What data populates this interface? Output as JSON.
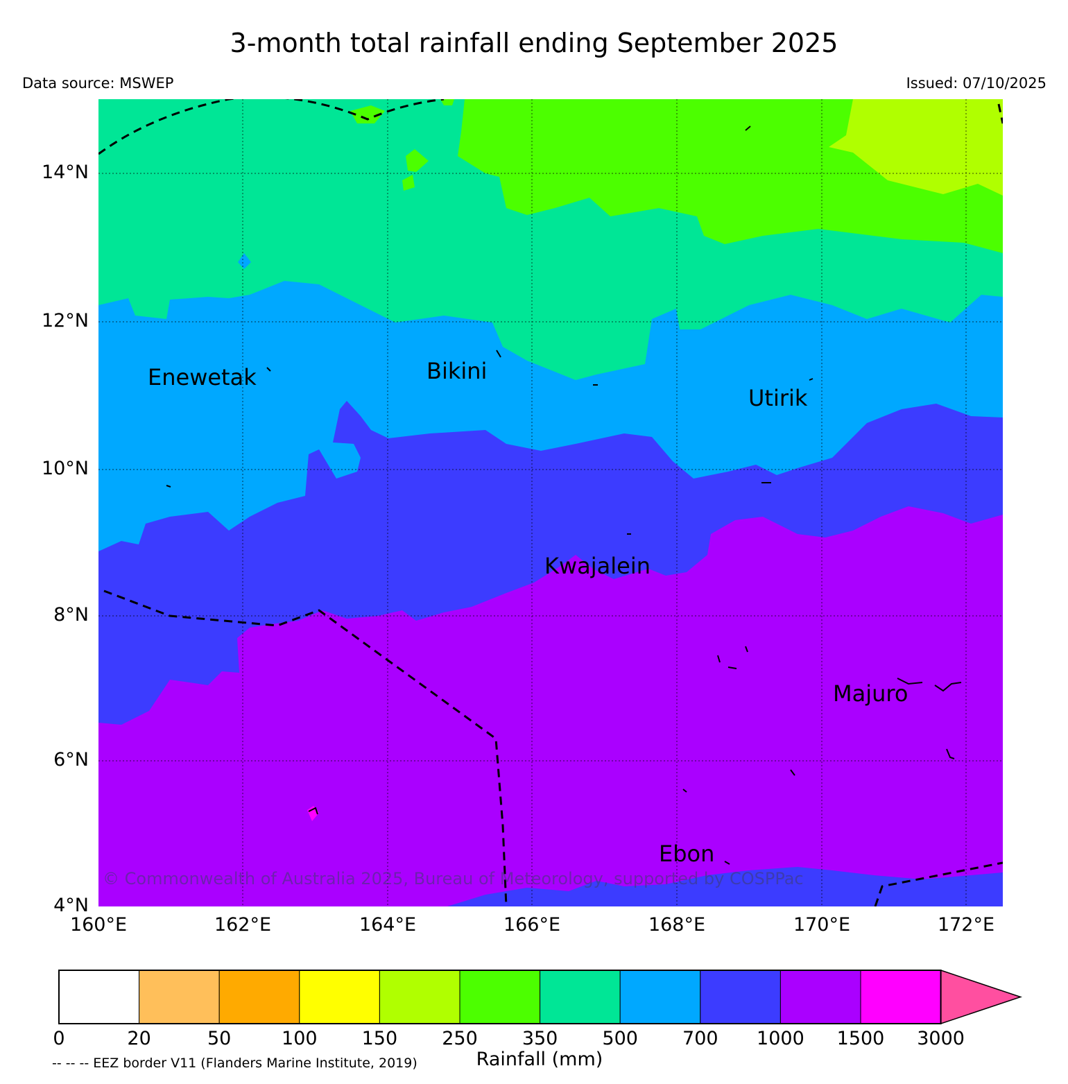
{
  "title": "3-month total rainfall ending September 2025",
  "data_source": "Data source: MSWEP",
  "issued": "Issued: 07/10/2025",
  "copyright": "© Commonwealth of Australia 2025, Bureau of Meteorology, supported by COSPPac",
  "eez_note": "-- -- -- EEZ border V11 (Flanders Marine Institute, 2019)",
  "axes": {
    "lat_labels": [
      "14°N",
      "12°N",
      "10°N",
      "8°N",
      "6°N",
      "4°N"
    ],
    "lon_labels": [
      "160°E",
      "162°E",
      "164°E",
      "166°E",
      "168°E",
      "170°E",
      "172°E"
    ],
    "lat_range": [
      4,
      15
    ],
    "lon_range": [
      160,
      172.5
    ]
  },
  "places": [
    {
      "name": "Enewetak"
    },
    {
      "name": "Bikini"
    },
    {
      "name": "Utirik"
    },
    {
      "name": "Kwajalein"
    },
    {
      "name": "Majuro"
    },
    {
      "name": "Ebon"
    }
  ],
  "colorbar": {
    "label": "Rainfall (mm)",
    "ticks": [
      "0",
      "20",
      "50",
      "100",
      "150",
      "250",
      "350",
      "500",
      "700",
      "1000",
      "1500",
      "3000"
    ],
    "colors": [
      "#ffffff",
      "#ffbf5a",
      "#ffaa00",
      "#ffff00",
      "#b0ff00",
      "#4cff00",
      "#00e696",
      "#00a8ff",
      "#3c3cff",
      "#aa00ff",
      "#ff00ff"
    ],
    "extend_color": "#ff4fa0"
  }
}
